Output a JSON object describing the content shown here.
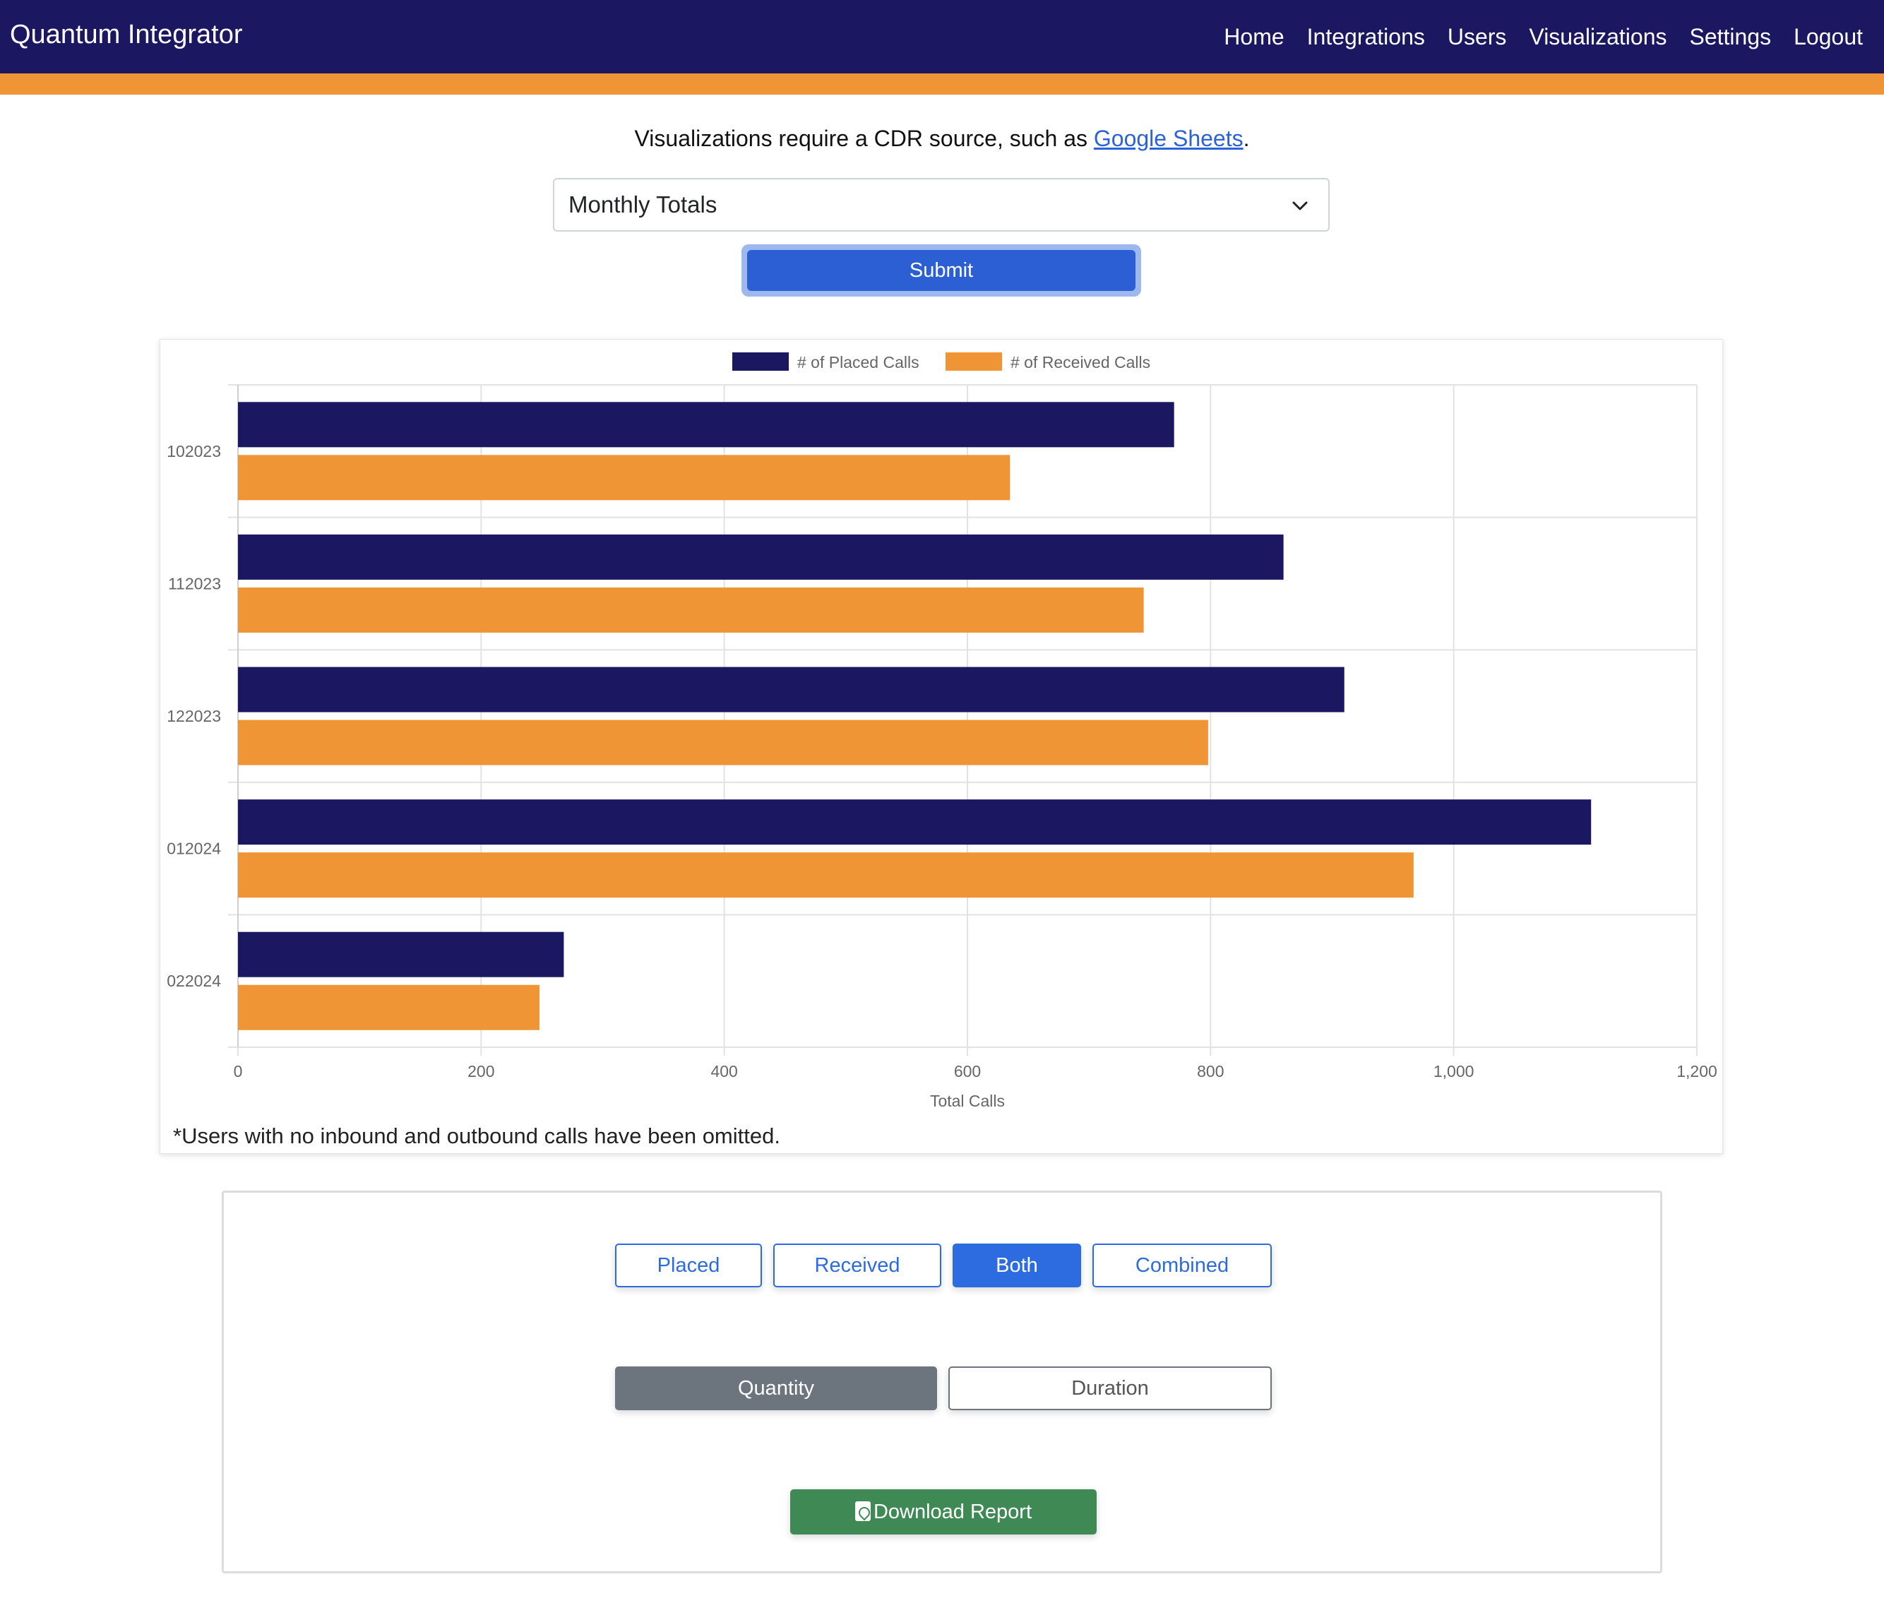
{
  "navbar": {
    "brand": "Quantum Integrator",
    "links": [
      "Home",
      "Integrations",
      "Users",
      "Visualizations",
      "Settings",
      "Logout"
    ]
  },
  "cdr_note": {
    "prefix": "Visualizations require a CDR source, such as ",
    "link": "Google Sheets",
    "suffix": "."
  },
  "report_select": {
    "value": "Monthly Totals"
  },
  "submit_label": "Submit",
  "chart_data": {
    "type": "bar",
    "orientation": "horizontal",
    "categories": [
      "102023",
      "112023",
      "122023",
      "012024",
      "022024"
    ],
    "series": [
      {
        "name": "# of Placed Calls",
        "color": "#1b1760",
        "values": [
          770,
          860,
          910,
          1113,
          268
        ]
      },
      {
        "name": "# of Received Calls",
        "color": "#f09535",
        "values": [
          635,
          745,
          798,
          967,
          248
        ]
      }
    ],
    "xlabel": "Total Calls",
    "xlim": [
      0,
      1200
    ],
    "xticks": [
      "0",
      "200",
      "400",
      "600",
      "800",
      "1,000",
      "1,200"
    ],
    "grid": true,
    "legend": "top-center"
  },
  "footnote": "*Users with no inbound and outbound calls have been omitted.",
  "controls": {
    "direction": [
      "Placed",
      "Received",
      "Both",
      "Combined"
    ],
    "direction_active": "Both",
    "metric": [
      "Quantity",
      "Duration"
    ],
    "metric_active": "Quantity",
    "download_label": "Download Report"
  }
}
